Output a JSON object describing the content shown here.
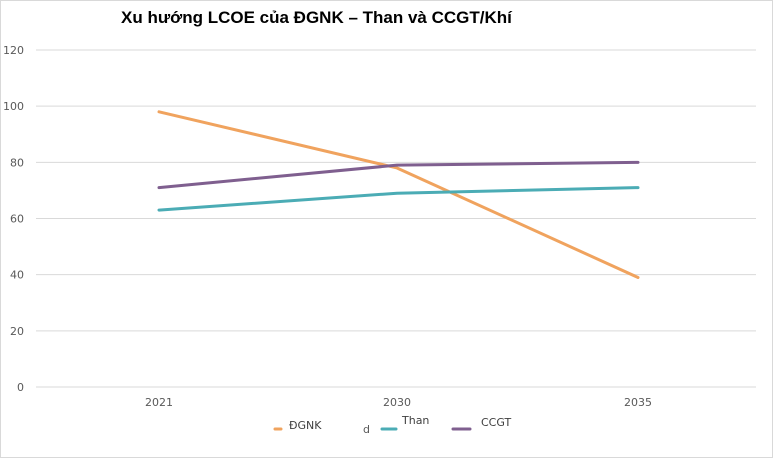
{
  "chart_data": {
    "type": "line",
    "title": "Xu hướng LCOE của ĐGNK – Than và CCGT/Khí",
    "categories": [
      "2021",
      "2030",
      "2035"
    ],
    "ylim": [
      0,
      120
    ],
    "yticks": [
      "0",
      "20",
      "40",
      "60",
      "80",
      "100",
      "120"
    ],
    "grid": true,
    "legend": {
      "placement": "bottom",
      "extra_text": "d"
    },
    "series": [
      {
        "name": "ĐGNK",
        "values": [
          98,
          78,
          39
        ],
        "color": "#F0A35E"
      },
      {
        "name": "Than",
        "values": [
          63,
          69,
          71
        ],
        "color": "#4BACB5"
      },
      {
        "name": "CCGT",
        "values": [
          71,
          79,
          80
        ],
        "color": "#7F5F8F"
      }
    ]
  }
}
